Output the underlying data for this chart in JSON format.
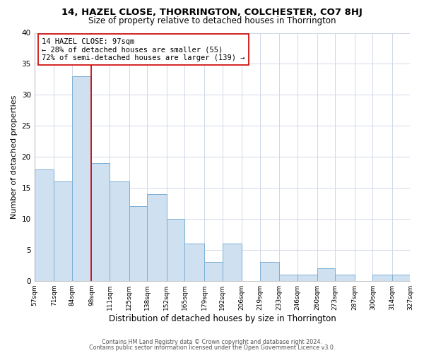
{
  "title1": "14, HAZEL CLOSE, THORRINGTON, COLCHESTER, CO7 8HJ",
  "title2": "Size of property relative to detached houses in Thorrington",
  "xlabel": "Distribution of detached houses by size in Thorrington",
  "ylabel": "Number of detached properties",
  "bar_edges": [
    57,
    71,
    84,
    98,
    111,
    125,
    138,
    152,
    165,
    179,
    192,
    206,
    219,
    233,
    246,
    260,
    273,
    287,
    300,
    314,
    327
  ],
  "bar_heights": [
    18,
    16,
    33,
    19,
    16,
    12,
    14,
    10,
    6,
    3,
    6,
    0,
    3,
    1,
    1,
    2,
    1,
    0,
    1,
    1
  ],
  "bar_color": "#cfe0f0",
  "bar_edgecolor": "#7bafd4",
  "vline_x": 98,
  "vline_color": "#cc0000",
  "annotation_line1": "14 HAZEL CLOSE: 97sqm",
  "annotation_line2": "← 28% of detached houses are smaller (55)",
  "annotation_line3": "72% of semi-detached houses are larger (139) →",
  "annotation_box_edgecolor": "#cc0000",
  "annotation_box_facecolor": "#ffffff",
  "ylim": [
    0,
    40
  ],
  "xlim": [
    57,
    327
  ],
  "tick_labels": [
    "57sqm",
    "71sqm",
    "84sqm",
    "98sqm",
    "111sqm",
    "125sqm",
    "138sqm",
    "152sqm",
    "165sqm",
    "179sqm",
    "192sqm",
    "206sqm",
    "219sqm",
    "233sqm",
    "246sqm",
    "260sqm",
    "273sqm",
    "287sqm",
    "300sqm",
    "314sqm",
    "327sqm"
  ],
  "yticks": [
    0,
    5,
    10,
    15,
    20,
    25,
    30,
    35,
    40
  ],
  "footer1": "Contains HM Land Registry data © Crown copyright and database right 2024.",
  "footer2": "Contains public sector information licensed under the Open Government Licence v3.0.",
  "bg_color": "#ffffff",
  "grid_color": "#d0d8e8",
  "title1_fontsize": 9.5,
  "title2_fontsize": 8.5,
  "xlabel_fontsize": 8.5,
  "ylabel_fontsize": 8.0,
  "xtick_fontsize": 6.5,
  "ytick_fontsize": 7.5,
  "annotation_fontsize": 7.5,
  "footer_fontsize": 5.8
}
